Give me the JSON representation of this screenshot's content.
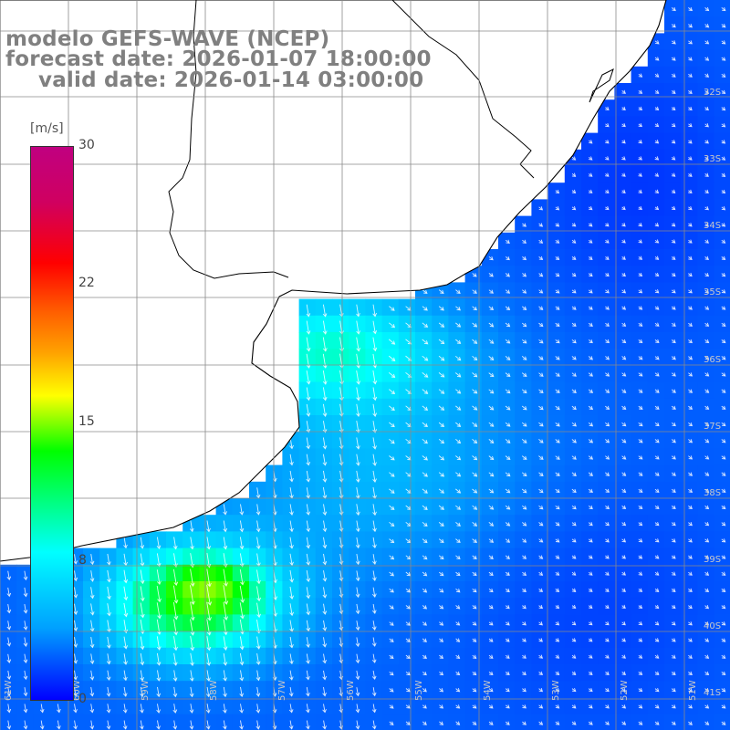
{
  "title": {
    "line1": "modelo GEFS-WAVE (NCEP)",
    "line2": "forecast date: 2026-01-07 18:00:00",
    "line3": "valid date: 2026-01-14 03:00:00"
  },
  "colorbar": {
    "unit": "[m/s]",
    "ticks": [
      "30",
      "22",
      "15",
      "8",
      "0"
    ],
    "min": 0,
    "max": 30,
    "colors": [
      "#0000ff",
      "#00a0ff",
      "#00ffff",
      "#00ff00",
      "#ffff00",
      "#ff6000",
      "#ff0000",
      "#c00080"
    ]
  },
  "map": {
    "land_color": "#ffffff",
    "coast_color": "#000000",
    "grid_color": "#8a8a8a",
    "latitude_labels": [
      "32S",
      "33S",
      "34S",
      "35S",
      "36S",
      "37S",
      "38S",
      "39S",
      "40S",
      "41S"
    ],
    "longitude_labels": [
      "61W",
      "60W",
      "59W",
      "58W",
      "57W",
      "56W",
      "55W",
      "54W",
      "53W",
      "52W",
      "51W"
    ],
    "field": "wind speed with direction arrows"
  }
}
